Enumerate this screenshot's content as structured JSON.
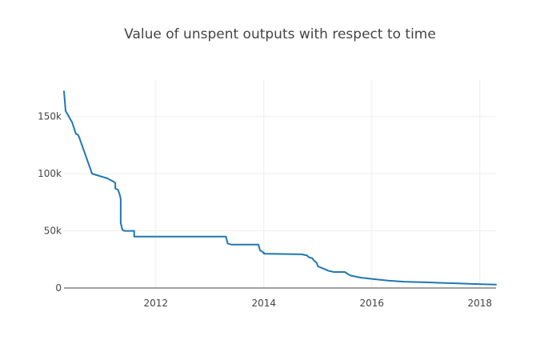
{
  "chart_data": {
    "type": "line",
    "title": "Value of unspent outputs with respect to time",
    "xlabel": "",
    "ylabel": "",
    "x_tick_labels": [
      "2012",
      "2014",
      "2016",
      "2018"
    ],
    "y_tick_labels": [
      "0",
      "50k",
      "100k",
      "150k"
    ],
    "xlim": [
      2010.3,
      2018.3
    ],
    "ylim": [
      0,
      182000
    ],
    "grid": true,
    "legend": "none",
    "series": [
      {
        "color": "#1f77b4",
        "x": [
          2010.3,
          2010.33,
          2010.45,
          2010.52,
          2010.56,
          2010.58,
          2010.82,
          2011.1,
          2011.22,
          2011.25,
          2011.25,
          2011.3,
          2011.33,
          2011.35,
          2011.35,
          2011.38,
          2011.42,
          2011.6,
          2011.6,
          2013.3,
          2013.33,
          2013.4,
          2013.9,
          2013.93,
          2014.0,
          2014.0,
          2014.7,
          2014.8,
          2014.83,
          2014.9,
          2014.93,
          2014.98,
          2015.0,
          2015.1,
          2015.2,
          2015.3,
          2015.5,
          2015.6,
          2015.7,
          2015.8,
          2016.0,
          2016.3,
          2016.6,
          2017.0,
          2017.3,
          2017.6,
          2017.9,
          2018.3
        ],
        "y": [
          172000,
          155000,
          145000,
          135000,
          134000,
          132000,
          100000,
          96000,
          93000,
          92000,
          87000,
          86000,
          82000,
          78000,
          57000,
          51000,
          50000,
          50000,
          45000,
          45000,
          39000,
          38000,
          38000,
          33000,
          31000,
          30000,
          29500,
          28500,
          27000,
          26000,
          24000,
          22000,
          19000,
          17000,
          15000,
          14000,
          14000,
          11000,
          10000,
          9000,
          8000,
          6500,
          5500,
          5000,
          4500,
          4000,
          3500,
          3000
        ]
      }
    ]
  }
}
